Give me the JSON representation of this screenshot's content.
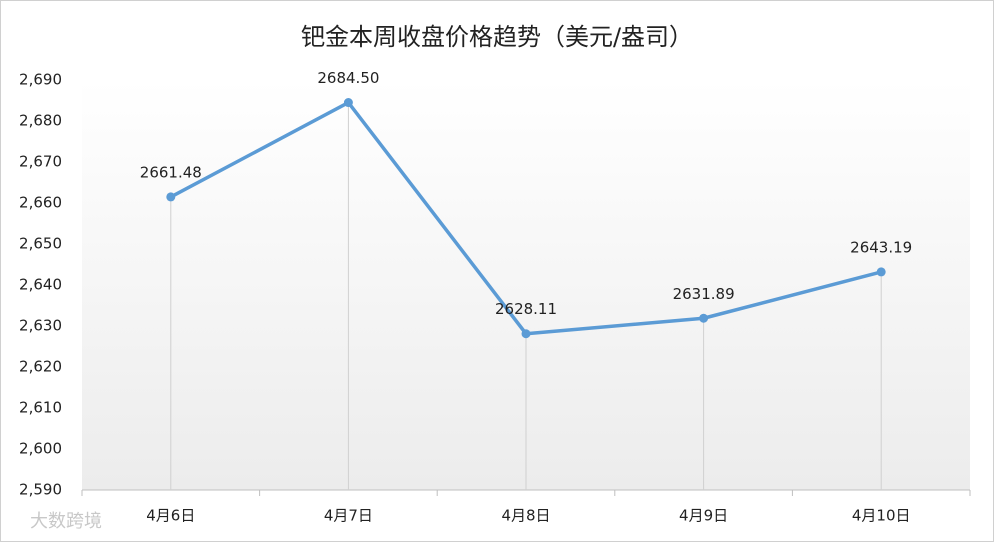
{
  "chart_data": {
    "type": "line",
    "title": "钯金本周收盘价格趋势（美元/盎司）",
    "categories": [
      "4月6日",
      "4月7日",
      "4月8日",
      "4月9日",
      "4月10日"
    ],
    "values": [
      2661.48,
      2684.5,
      2628.11,
      2631.89,
      2643.19
    ],
    "value_labels": [
      "2661.48",
      "2684.50",
      "2628.11",
      "2631.89",
      "2643.19"
    ],
    "color": "#5b9bd5",
    "drop_lines": true,
    "ylim": [
      2590,
      2690
    ],
    "yticks": [
      {
        "value": 2590,
        "label": "2,590"
      },
      {
        "value": 2600,
        "label": "2,600"
      },
      {
        "value": 2610,
        "label": "2,610"
      },
      {
        "value": 2620,
        "label": "2,620"
      },
      {
        "value": 2630,
        "label": "2,630"
      },
      {
        "value": 2640,
        "label": "2,640"
      },
      {
        "value": 2650,
        "label": "2,650"
      },
      {
        "value": 2660,
        "label": "2,660"
      },
      {
        "value": 2670,
        "label": "2,670"
      },
      {
        "value": 2680,
        "label": "2,680"
      },
      {
        "value": 2690,
        "label": "2,690"
      }
    ],
    "watermark": "大数跨境"
  }
}
